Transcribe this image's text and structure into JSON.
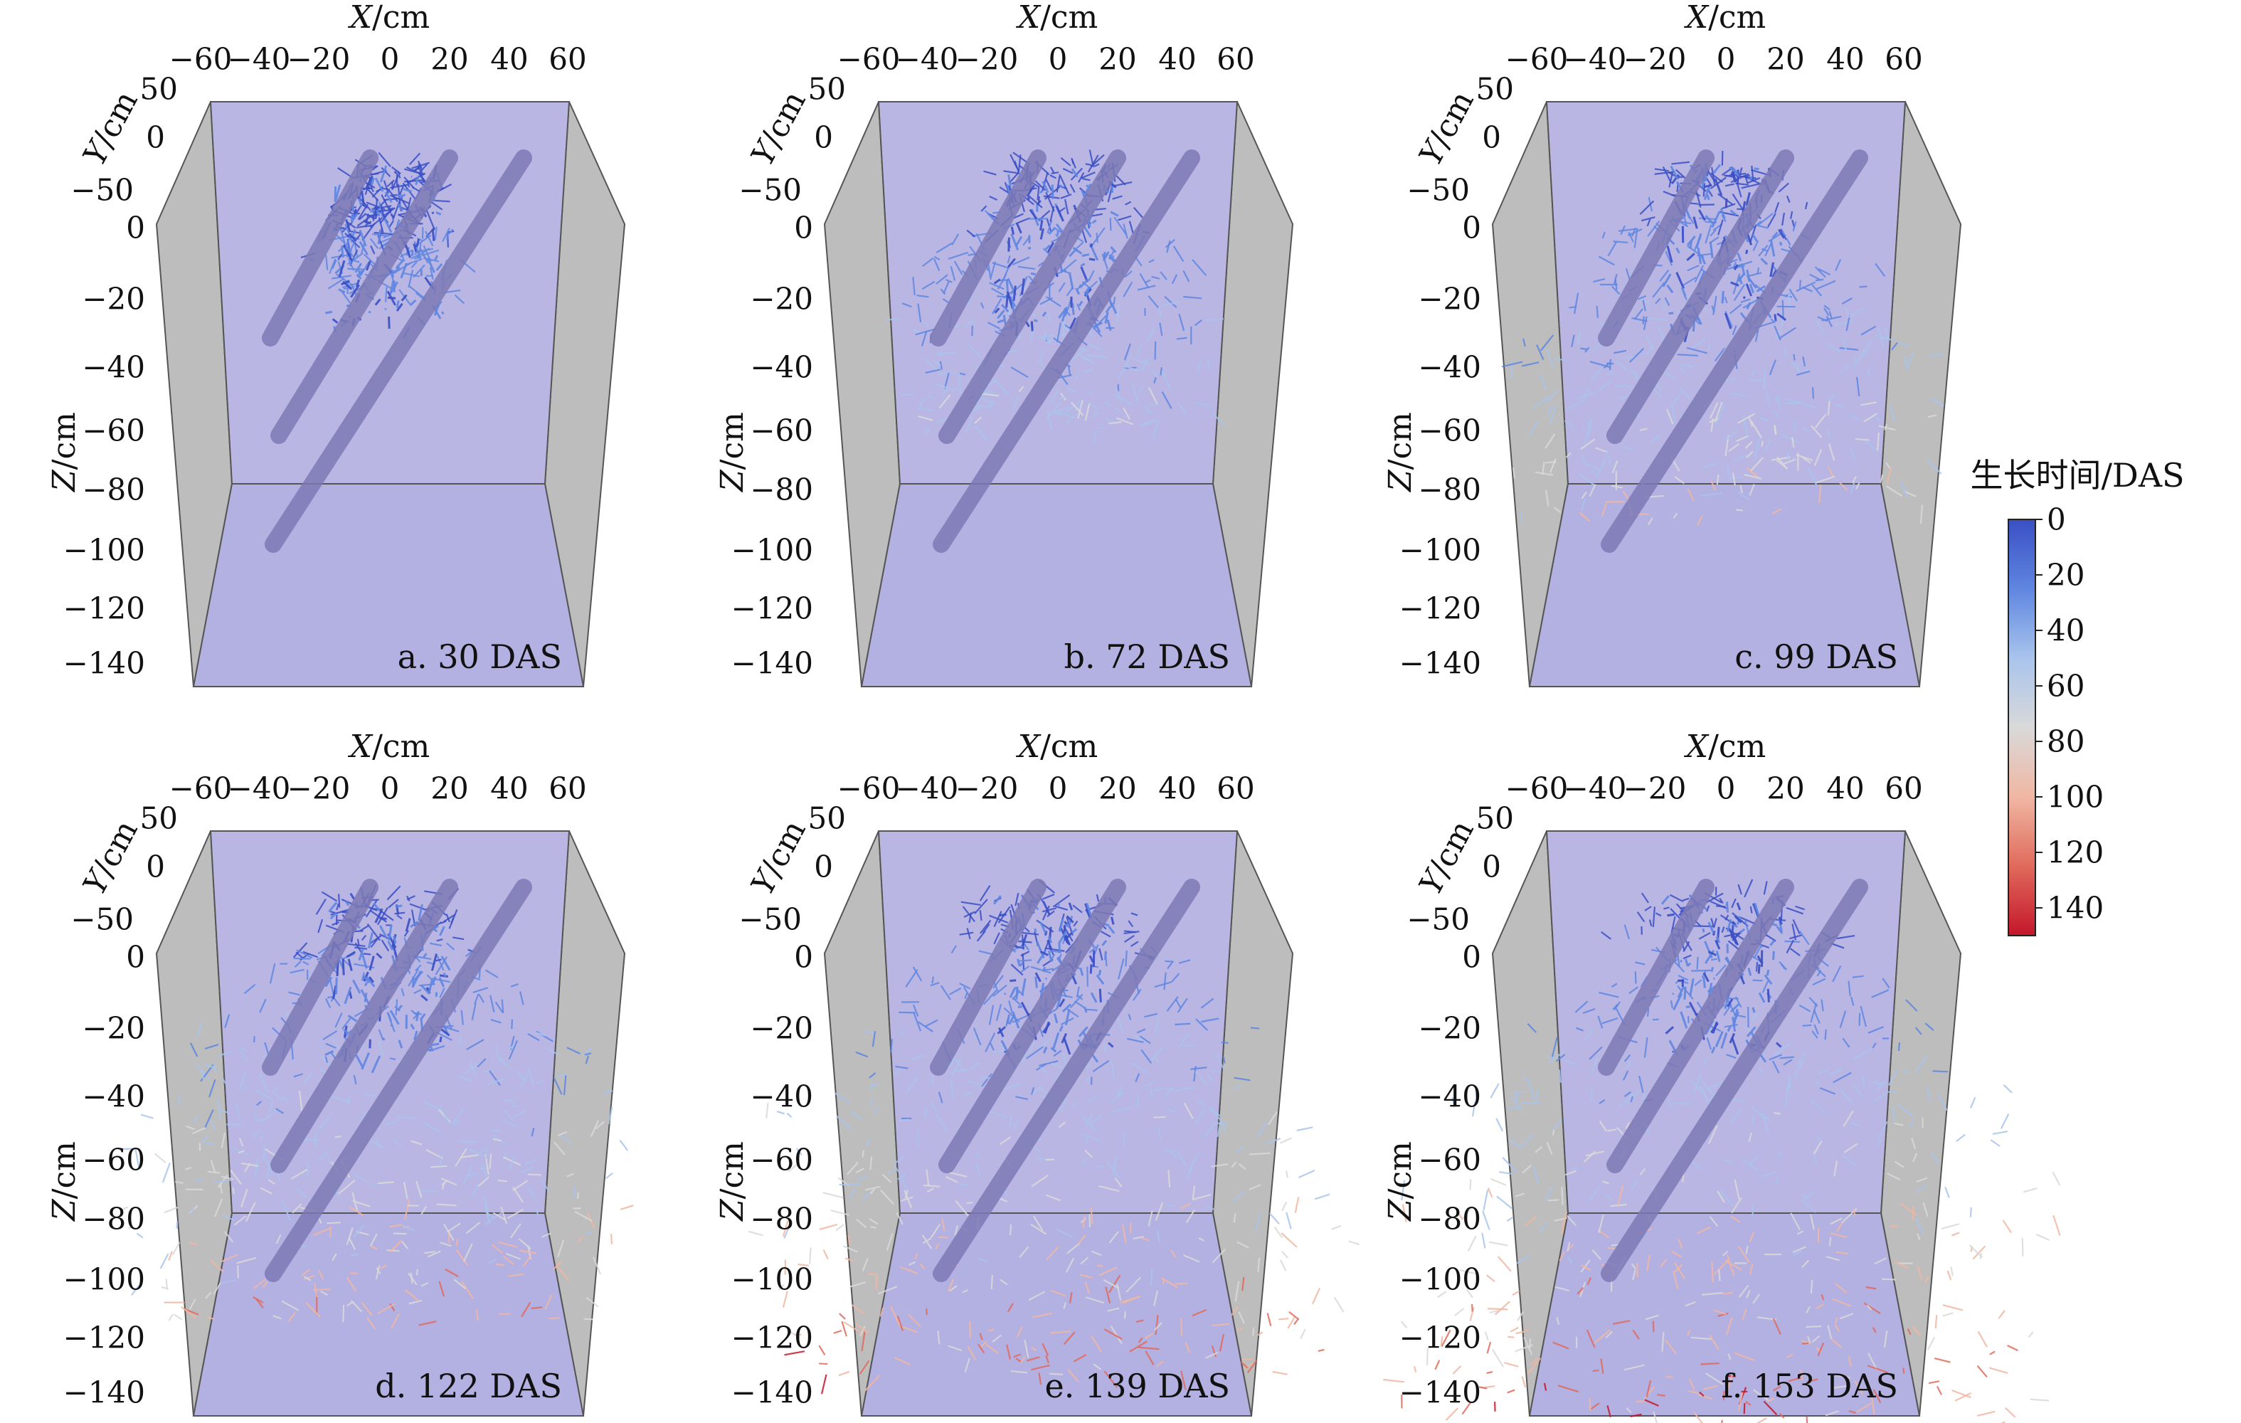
{
  "axes": {
    "x_label": "X/cm",
    "y_label": "Y/cm",
    "z_label": "Z/cm",
    "x_ticks": [
      "−60",
      "−40",
      "−20",
      "0",
      "20",
      "40",
      "60"
    ],
    "y_ticks": [
      "50",
      "0",
      "−50"
    ],
    "z_ticks": [
      "0",
      "−20",
      "−40",
      "−60",
      "−80",
      "−100",
      "−120",
      "−140"
    ]
  },
  "panels": [
    {
      "id": "a",
      "label": "a. 30 DAS",
      "das": 30
    },
    {
      "id": "b",
      "label": "b. 72 DAS",
      "das": 72
    },
    {
      "id": "c",
      "label": "c. 99 DAS",
      "das": 99
    },
    {
      "id": "d",
      "label": "d. 122 DAS",
      "das": 122
    },
    {
      "id": "e",
      "label": "e. 139 DAS",
      "das": 139
    },
    {
      "id": "f",
      "label": "f. 153 DAS",
      "das": 153
    }
  ],
  "colorbar": {
    "title": "生长时间/DAS",
    "ticks": [
      "0",
      "20",
      "40",
      "60",
      "80",
      "100",
      "120",
      "140"
    ],
    "min": 0,
    "max": 150,
    "colors": [
      "#3a4fc4",
      "#5f86e0",
      "#a9c4ec",
      "#d9d9d9",
      "#f0b7a3",
      "#e06a5c",
      "#c4162a"
    ]
  },
  "colors": {
    "back_wall": "#b9b6e4",
    "floor": "#b3b0e2",
    "side_wall": "#bdbdbd",
    "tube": "#7d79b5"
  }
}
